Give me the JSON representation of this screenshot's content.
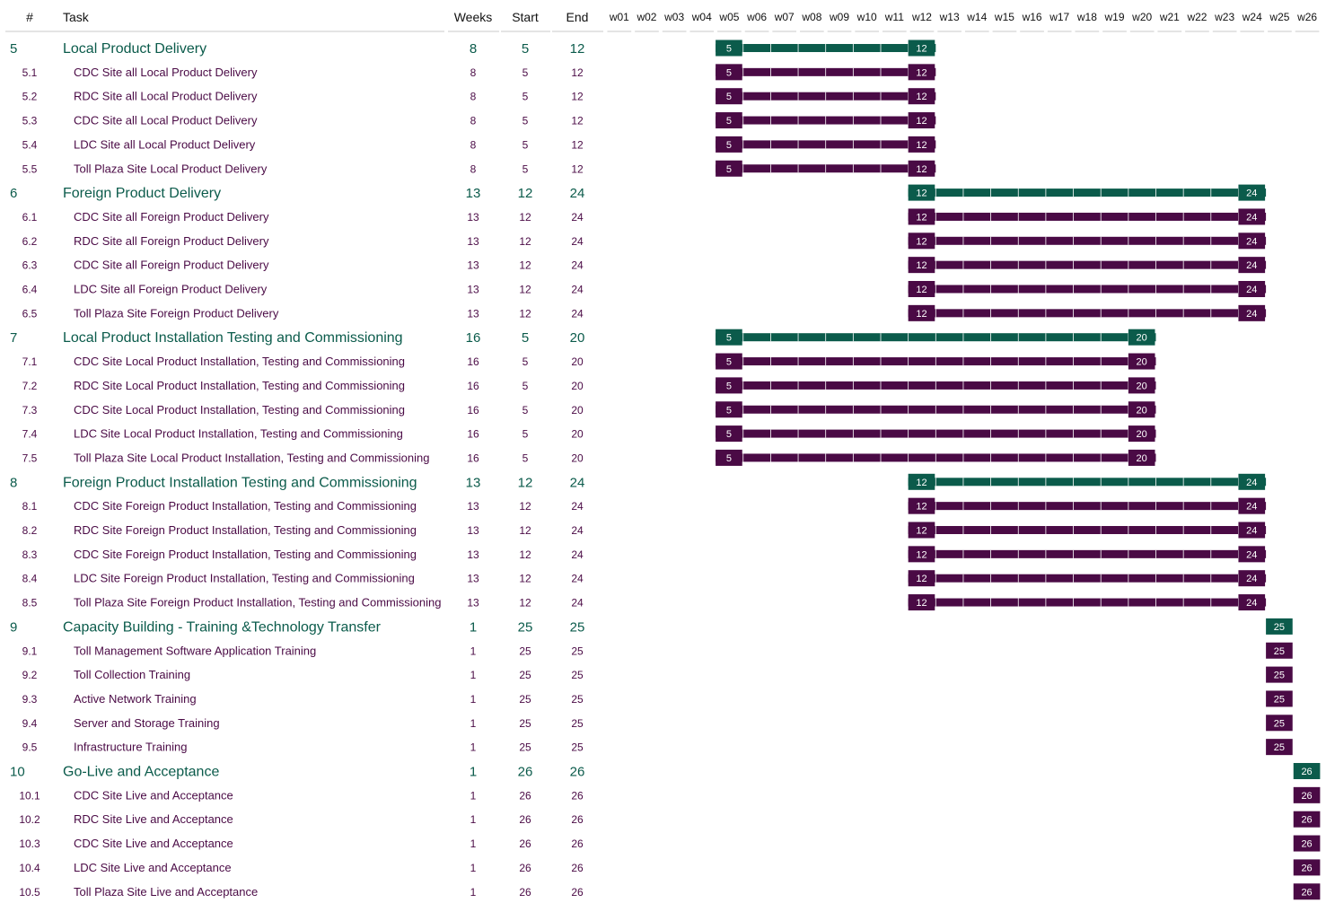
{
  "columns": {
    "num": "#",
    "task": "Task",
    "weeks": "Weeks",
    "start": "Start",
    "end": "End"
  },
  "weeks": [
    "w01",
    "w02",
    "w03",
    "w04",
    "w05",
    "w06",
    "w07",
    "w08",
    "w09",
    "w10",
    "w11",
    "w12",
    "w13",
    "w14",
    "w15",
    "w16",
    "w17",
    "w18",
    "w19",
    "w20",
    "w21",
    "w22",
    "w23",
    "w24",
    "w25",
    "w26"
  ],
  "colors": {
    "parent": "#0b5b4b",
    "child": "#4a0a45",
    "header_line": "#c8c8c8"
  },
  "chart_data": {
    "type": "gantt",
    "title": "",
    "x_unit": "week",
    "xlim": [
      1,
      26
    ],
    "tasks": [
      {
        "id": "5",
        "name": "Local Product Delivery",
        "weeks": 8,
        "start": 5,
        "end": 12,
        "level": 0
      },
      {
        "id": "5.1",
        "name": "CDC Site all Local Product Delivery",
        "weeks": 8,
        "start": 5,
        "end": 12,
        "level": 1
      },
      {
        "id": "5.2",
        "name": "RDC Site all Local Product Delivery",
        "weeks": 8,
        "start": 5,
        "end": 12,
        "level": 1
      },
      {
        "id": "5.3",
        "name": "CDC Site all Local Product Delivery",
        "weeks": 8,
        "start": 5,
        "end": 12,
        "level": 1
      },
      {
        "id": "5.4",
        "name": "LDC Site all Local Product Delivery",
        "weeks": 8,
        "start": 5,
        "end": 12,
        "level": 1
      },
      {
        "id": "5.5",
        "name": "Toll Plaza Site Local Product Delivery",
        "weeks": 8,
        "start": 5,
        "end": 12,
        "level": 1
      },
      {
        "id": "6",
        "name": "Foreign Product Delivery",
        "weeks": 13,
        "start": 12,
        "end": 24,
        "level": 0
      },
      {
        "id": "6.1",
        "name": "CDC Site all Foreign Product Delivery",
        "weeks": 13,
        "start": 12,
        "end": 24,
        "level": 1
      },
      {
        "id": "6.2",
        "name": "RDC Site all Foreign Product Delivery",
        "weeks": 13,
        "start": 12,
        "end": 24,
        "level": 1
      },
      {
        "id": "6.3",
        "name": "CDC Site all Foreign Product Delivery",
        "weeks": 13,
        "start": 12,
        "end": 24,
        "level": 1
      },
      {
        "id": "6.4",
        "name": "LDC Site all Foreign Product Delivery",
        "weeks": 13,
        "start": 12,
        "end": 24,
        "level": 1
      },
      {
        "id": "6.5",
        "name": "Toll Plaza Site Foreign Product Delivery",
        "weeks": 13,
        "start": 12,
        "end": 24,
        "level": 1
      },
      {
        "id": "7",
        "name": "Local Product Installation Testing and Commissioning",
        "weeks": 16,
        "start": 5,
        "end": 20,
        "level": 0
      },
      {
        "id": "7.1",
        "name": "CDC Site Local Product Installation, Testing and Commissioning",
        "weeks": 16,
        "start": 5,
        "end": 20,
        "level": 1
      },
      {
        "id": "7.2",
        "name": "RDC Site Local Product Installation, Testing and Commissioning",
        "weeks": 16,
        "start": 5,
        "end": 20,
        "level": 1
      },
      {
        "id": "7.3",
        "name": "CDC Site Local Product Installation, Testing and Commissioning",
        "weeks": 16,
        "start": 5,
        "end": 20,
        "level": 1
      },
      {
        "id": "7.4",
        "name": "LDC Site Local Product Installation, Testing and Commissioning",
        "weeks": 16,
        "start": 5,
        "end": 20,
        "level": 1
      },
      {
        "id": "7.5",
        "name": "Toll Plaza Site Local Product Installation, Testing and Commissioning",
        "weeks": 16,
        "start": 5,
        "end": 20,
        "level": 1
      },
      {
        "id": "8",
        "name": "Foreign Product Installation Testing and Commissioning",
        "weeks": 13,
        "start": 12,
        "end": 24,
        "level": 0
      },
      {
        "id": "8.1",
        "name": "CDC Site Foreign Product Installation, Testing and Commissioning",
        "weeks": 13,
        "start": 12,
        "end": 24,
        "level": 1
      },
      {
        "id": "8.2",
        "name": "RDC Site Foreign Product Installation, Testing and Commissioning",
        "weeks": 13,
        "start": 12,
        "end": 24,
        "level": 1
      },
      {
        "id": "8.3",
        "name": "CDC Site Foreign Product Installation, Testing and Commissioning",
        "weeks": 13,
        "start": 12,
        "end": 24,
        "level": 1
      },
      {
        "id": "8.4",
        "name": "LDC Site Foreign Product Installation, Testing and Commissioning",
        "weeks": 13,
        "start": 12,
        "end": 24,
        "level": 1
      },
      {
        "id": "8.5",
        "name": "Toll Plaza Site Foreign Product Installation, Testing and Commissioning",
        "weeks": 13,
        "start": 12,
        "end": 24,
        "level": 1
      },
      {
        "id": "9",
        "name": "Capacity Building - Training &Technology Transfer",
        "weeks": 1,
        "start": 25,
        "end": 25,
        "level": 0
      },
      {
        "id": "9.1",
        "name": "Toll Management Software Application Training",
        "weeks": 1,
        "start": 25,
        "end": 25,
        "level": 1
      },
      {
        "id": "9.2",
        "name": "Toll Collection Training",
        "weeks": 1,
        "start": 25,
        "end": 25,
        "level": 1
      },
      {
        "id": "9.3",
        "name": "Active Network Training",
        "weeks": 1,
        "start": 25,
        "end": 25,
        "level": 1
      },
      {
        "id": "9.4",
        "name": "Server and Storage Training",
        "weeks": 1,
        "start": 25,
        "end": 25,
        "level": 1
      },
      {
        "id": "9.5",
        "name": "Infrastructure Training",
        "weeks": 1,
        "start": 25,
        "end": 25,
        "level": 1
      },
      {
        "id": "10",
        "name": "Go-Live and Acceptance",
        "weeks": 1,
        "start": 26,
        "end": 26,
        "level": 0
      },
      {
        "id": "10.1",
        "name": "CDC Site Live and Acceptance",
        "weeks": 1,
        "start": 26,
        "end": 26,
        "level": 1
      },
      {
        "id": "10.2",
        "name": "RDC Site Live and Acceptance",
        "weeks": 1,
        "start": 26,
        "end": 26,
        "level": 1
      },
      {
        "id": "10.3",
        "name": "CDC Site Live and Acceptance",
        "weeks": 1,
        "start": 26,
        "end": 26,
        "level": 1
      },
      {
        "id": "10.4",
        "name": "LDC Site Live and Acceptance",
        "weeks": 1,
        "start": 26,
        "end": 26,
        "level": 1
      },
      {
        "id": "10.5",
        "name": "Toll Plaza Site Live and Acceptance",
        "weeks": 1,
        "start": 26,
        "end": 26,
        "level": 1
      }
    ]
  }
}
